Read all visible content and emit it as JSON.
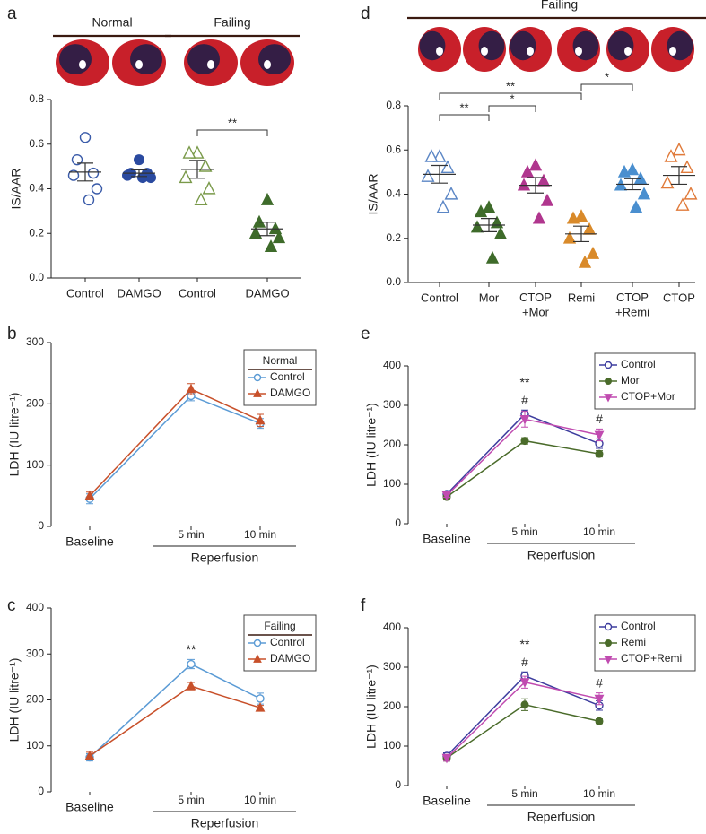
{
  "chart_data": [
    {
      "type": "dotplot",
      "panel": "a",
      "y_label": "IS/AAR",
      "group_labels": [
        {
          "label": "Normal",
          "categories": [
            0,
            1
          ]
        },
        {
          "label": "Failing",
          "categories": [
            2,
            3
          ]
        }
      ],
      "categories": [
        "Control",
        "DAMGO",
        "Control",
        "DAMGO"
      ],
      "values": [
        [
          0.63,
          0.53,
          0.47,
          0.46,
          0.4,
          0.35
        ],
        [
          0.53,
          0.47,
          0.47,
          0.46,
          0.45,
          0.45
        ],
        [
          0.56,
          0.56,
          0.5,
          0.45,
          0.4,
          0.35
        ],
        [
          0.35,
          0.25,
          0.22,
          0.2,
          0.18,
          0.14
        ]
      ],
      "means": [
        0.475,
        0.47,
        0.487,
        0.22
      ],
      "sems": [
        0.04,
        0.015,
        0.04,
        0.03
      ],
      "colors": [
        "#3a5ba9",
        "#2a4aa0",
        "#7a9a4a",
        "#3e6b2a"
      ],
      "markers": [
        "circle-open",
        "circle",
        "triangle-open",
        "triangle"
      ],
      "annotations": [
        {
          "text": "**",
          "from": 2,
          "to": 3
        }
      ],
      "ylim": [
        0,
        0.8
      ],
      "yticks": [
        {
          "value": 0,
          "label": "0.0"
        },
        0.2,
        0.4,
        0.6,
        0.8
      ]
    },
    {
      "type": "line",
      "panel": "b",
      "y_label": "LDH (IU litre⁻¹)",
      "x": [
        "Baseline",
        "5 min",
        "10 min"
      ],
      "x_group": {
        "label": "Reperfusion",
        "categories": [
          1,
          2
        ]
      },
      "series": [
        {
          "name": "Control",
          "color": "#5b9bd5",
          "marker": "circle-open",
          "values": [
            45,
            213,
            168
          ],
          "errors": [
            8,
            8,
            8
          ]
        },
        {
          "name": "DAMGO",
          "color": "#c8502a",
          "marker": "triangle",
          "values": [
            50,
            224,
            173
          ],
          "errors": [
            6,
            9,
            10
          ]
        }
      ],
      "legend": {
        "title": "Normal",
        "loc": "upper right"
      },
      "annotations": [],
      "ylim": [
        0,
        300
      ],
      "yticks": [
        0,
        100,
        200,
        300
      ]
    },
    {
      "type": "line",
      "panel": "c",
      "y_label": "LDH (IU litre⁻¹)",
      "x": [
        "Baseline",
        "5 min",
        "10 min"
      ],
      "x_group": {
        "label": "Reperfusion",
        "categories": [
          1,
          2
        ]
      },
      "series": [
        {
          "name": "Control",
          "color": "#5b9bd5",
          "marker": "circle-open",
          "values": [
            75,
            278,
            203
          ],
          "errors": [
            8,
            10,
            12
          ]
        },
        {
          "name": "DAMGO",
          "color": "#c8502a",
          "marker": "triangle",
          "values": [
            78,
            230,
            183
          ],
          "errors": [
            8,
            8,
            5
          ]
        }
      ],
      "legend": {
        "title": "Failing",
        "loc": "upper right"
      },
      "annotations": [
        {
          "text": "**",
          "at": 1
        }
      ],
      "ylim": [
        0,
        400
      ],
      "yticks": [
        0,
        100,
        200,
        300,
        400
      ]
    },
    {
      "type": "dotplot",
      "panel": "d",
      "y_label": "IS/AAR",
      "group_labels": [
        {
          "label": "Failing",
          "categories": [
            0,
            5
          ]
        }
      ],
      "categories": [
        "Control",
        "Mor",
        "CTOP\n+Mor",
        "Remi",
        "CTOP\n+Remi",
        "CTOP"
      ],
      "values": [
        [
          0.57,
          0.57,
          0.52,
          0.48,
          0.4,
          0.34
        ],
        [
          0.34,
          0.32,
          0.27,
          0.25,
          0.22,
          0.11
        ],
        [
          0.53,
          0.5,
          0.46,
          0.44,
          0.37,
          0.29
        ],
        [
          0.3,
          0.29,
          0.24,
          0.2,
          0.13,
          0.09
        ],
        [
          0.51,
          0.5,
          0.47,
          0.44,
          0.4,
          0.34
        ],
        [
          0.6,
          0.57,
          0.52,
          0.45,
          0.4,
          0.35
        ]
      ],
      "means": [
        0.49,
        0.26,
        0.44,
        0.22,
        0.445,
        0.485
      ],
      "sems": [
        0.04,
        0.03,
        0.035,
        0.035,
        0.025,
        0.04
      ],
      "colors": [
        "#5b86c5",
        "#3e6b2a",
        "#b0368e",
        "#d98a2a",
        "#4a8fcf",
        "#e07a3a"
      ],
      "markers": [
        "triangle-open",
        "triangle",
        "triangle",
        "triangle",
        "triangle",
        "triangle-open"
      ],
      "annotations": [
        {
          "text": "**",
          "from": 0,
          "to": 1
        },
        {
          "text": "*",
          "from": 1,
          "to": 2
        },
        {
          "text": "**",
          "from": 0,
          "to": 3
        },
        {
          "text": "*",
          "from": 3,
          "to": 4
        }
      ],
      "ylim": [
        0,
        0.8
      ],
      "yticks": [
        {
          "value": 0,
          "label": "0.0"
        },
        0.2,
        0.4,
        0.6,
        0.8
      ]
    },
    {
      "type": "line",
      "panel": "e",
      "y_label": "LDH (IU litre⁻¹)",
      "x": [
        "Baseline",
        "5 min",
        "10 min"
      ],
      "x_group": {
        "label": "Reperfusion",
        "categories": [
          1,
          2
        ]
      },
      "series": [
        {
          "name": "Control",
          "color": "#3d3d9e",
          "marker": "circle-open",
          "values": [
            75,
            278,
            203
          ],
          "errors": [
            6,
            10,
            12
          ]
        },
        {
          "name": "Mor",
          "color": "#4a6b2a",
          "marker": "circle",
          "values": [
            68,
            210,
            177
          ],
          "errors": [
            5,
            8,
            8
          ]
        },
        {
          "name": "CTOP+Mor",
          "color": "#c04bb0",
          "marker": "triangle-down",
          "values": [
            72,
            265,
            225
          ],
          "errors": [
            5,
            20,
            15
          ]
        }
      ],
      "legend": {
        "loc": "upper right"
      },
      "annotations": [
        {
          "text": "#",
          "at": 1
        },
        {
          "text": "**",
          "at": 1
        },
        {
          "text": "#",
          "at": 2
        }
      ],
      "ylim": [
        0,
        400
      ],
      "yticks": [
        0,
        100,
        200,
        300,
        400
      ]
    },
    {
      "type": "line",
      "panel": "f",
      "y_label": "LDH (IU litre⁻¹)",
      "x": [
        "Baseline",
        "5 min",
        "10 min"
      ],
      "x_group": {
        "label": "Reperfusion",
        "categories": [
          1,
          2
        ]
      },
      "series": [
        {
          "name": "Control",
          "color": "#3d3d9e",
          "marker": "circle-open",
          "values": [
            75,
            278,
            203
          ],
          "errors": [
            8,
            10,
            12
          ]
        },
        {
          "name": "Remi",
          "color": "#4a6b2a",
          "marker": "circle",
          "values": [
            70,
            205,
            163
          ],
          "errors": [
            8,
            15,
            6
          ]
        },
        {
          "name": "CTOP+Remi",
          "color": "#c04bb0",
          "marker": "triangle-down",
          "values": [
            70,
            262,
            220
          ],
          "errors": [
            8,
            15,
            15
          ]
        }
      ],
      "legend": {
        "loc": "upper right"
      },
      "annotations": [
        {
          "text": "#",
          "at": 1
        },
        {
          "text": "**",
          "at": 1
        },
        {
          "text": "#",
          "at": 2
        }
      ],
      "ylim": [
        0,
        400
      ],
      "yticks": [
        0,
        100,
        200,
        300,
        400
      ]
    }
  ]
}
